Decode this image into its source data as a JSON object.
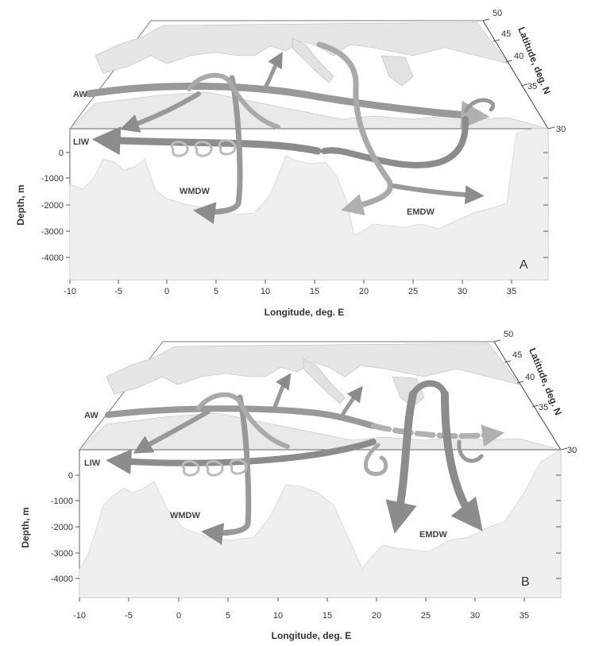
{
  "panels": [
    {
      "tag": "A",
      "labels": {
        "aw": "AW",
        "liw": "LIW",
        "wmdw": "WMDW",
        "emdw": "EMDW"
      },
      "xlabel": "Longitude, deg. E",
      "ylabel": "Depth, m",
      "latlabel": "Latitude, deg. N",
      "x_ticks": [
        "-10",
        "-5",
        "0",
        "5",
        "10",
        "15",
        "20",
        "25",
        "30",
        "35"
      ],
      "depth_ticks": [
        "0",
        "-1000",
        "-2000",
        "-3000",
        "-4000"
      ],
      "lat_ticks": [
        "30",
        "35",
        "40",
        "45",
        "50"
      ]
    },
    {
      "tag": "B",
      "labels": {
        "aw": "AW",
        "liw": "LIW",
        "wmdw": "WMDW",
        "emdw": "EMDW"
      },
      "xlabel": "Longitude, deg. E",
      "ylabel": "Depth, m",
      "latlabel": "Latitude, deg. N",
      "x_ticks": [
        "-10",
        "-5",
        "0",
        "5",
        "10",
        "15",
        "20",
        "25",
        "30",
        "35"
      ],
      "depth_ticks": [
        "0",
        "-1000",
        "-2000",
        "-3000",
        "-4000"
      ],
      "lat_ticks": [
        "30",
        "35",
        "40",
        "45",
        "50"
      ]
    }
  ],
  "colors": {
    "land": "#ececec",
    "seabed": "#efefef",
    "arrow": "#8c8c8c",
    "arrow_light": "#b5b5b5",
    "frame": "#555555"
  }
}
